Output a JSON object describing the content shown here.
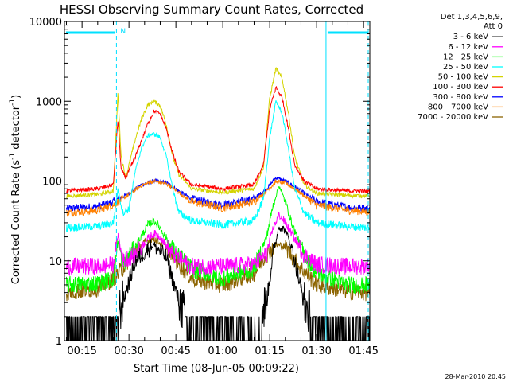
{
  "chart_data": {
    "type": "line",
    "title": "HESSI Observing Summary Count Rates, Corrected",
    "xlabel": "Start Time (08-Jun-05 00:09:22)",
    "ylabel_main": "Corrected Count Rate (s",
    "ylabel_sup1": "-1",
    "ylabel_mid": " detector",
    "ylabel_sup2": "-1",
    "ylabel_end": ")",
    "yscale": "log",
    "ylim": [
      1,
      10000
    ],
    "xlim": [
      9.37,
      107
    ],
    "y_ticks": [
      {
        "v": 1,
        "label": "1"
      },
      {
        "v": 10,
        "label": "10"
      },
      {
        "v": 100,
        "label": "100"
      },
      {
        "v": 1000,
        "label": "1000"
      },
      {
        "v": 10000,
        "label": "10000"
      }
    ],
    "x_ticks": [
      {
        "v": 15,
        "label": "00:15"
      },
      {
        "v": 30,
        "label": "00:30"
      },
      {
        "v": 45,
        "label": "00:45"
      },
      {
        "v": 60,
        "label": "01:00"
      },
      {
        "v": 75,
        "label": "01:15"
      },
      {
        "v": 90,
        "label": "01:30"
      },
      {
        "v": 105,
        "label": "01:45"
      }
    ],
    "legend_header": [
      "Det 1,3,4,5,6,9,",
      "Att 0"
    ],
    "series": [
      {
        "name": "3 - 6 keV",
        "color": "#000000",
        "points": [
          [
            10,
            1.5
          ],
          [
            20,
            1.6
          ],
          [
            25,
            1.5
          ],
          [
            28,
            3
          ],
          [
            32,
            10
          ],
          [
            36,
            14
          ],
          [
            38,
            16
          ],
          [
            42,
            11
          ],
          [
            46,
            3
          ],
          [
            50,
            1.5
          ],
          [
            60,
            1.2
          ],
          [
            70,
            1.3
          ],
          [
            74,
            3
          ],
          [
            76,
            12
          ],
          [
            78,
            27
          ],
          [
            80,
            24
          ],
          [
            82,
            15
          ],
          [
            86,
            3
          ],
          [
            90,
            1.5
          ],
          [
            100,
            1.3
          ],
          [
            107,
            1.2
          ]
        ]
      },
      {
        "name": "6 - 12 keV",
        "color": "#ff00ff",
        "points": [
          [
            10,
            8.5
          ],
          [
            20,
            8.5
          ],
          [
            25,
            9
          ],
          [
            26.5,
            22
          ],
          [
            28,
            10
          ],
          [
            32,
            12
          ],
          [
            36,
            19
          ],
          [
            38,
            22
          ],
          [
            40,
            20
          ],
          [
            44,
            12
          ],
          [
            50,
            8.5
          ],
          [
            60,
            8.5
          ],
          [
            70,
            9
          ],
          [
            74,
            12
          ],
          [
            76,
            25
          ],
          [
            78,
            38
          ],
          [
            80,
            30
          ],
          [
            82,
            22
          ],
          [
            86,
            12
          ],
          [
            90,
            9
          ],
          [
            100,
            8.5
          ],
          [
            107,
            8.5
          ]
        ]
      },
      {
        "name": "12 - 25 keV",
        "color": "#00ff00",
        "points": [
          [
            10,
            5
          ],
          [
            20,
            5.2
          ],
          [
            25,
            6
          ],
          [
            26.5,
            18
          ],
          [
            28,
            9
          ],
          [
            32,
            15
          ],
          [
            36,
            28
          ],
          [
            38,
            32
          ],
          [
            40,
            26
          ],
          [
            44,
            14
          ],
          [
            50,
            8
          ],
          [
            60,
            6
          ],
          [
            70,
            8
          ],
          [
            74,
            20
          ],
          [
            76,
            48
          ],
          [
            78,
            88
          ],
          [
            80,
            55
          ],
          [
            82,
            30
          ],
          [
            86,
            12
          ],
          [
            90,
            7
          ],
          [
            100,
            5
          ],
          [
            107,
            5
          ]
        ]
      },
      {
        "name": "25 - 50 keV",
        "color": "#00ffff",
        "points": [
          [
            10,
            26
          ],
          [
            20,
            27
          ],
          [
            25,
            30
          ],
          [
            26.5,
            80
          ],
          [
            28,
            40
          ],
          [
            30,
            45
          ],
          [
            32,
            130
          ],
          [
            34,
            260
          ],
          [
            36,
            370
          ],
          [
            38,
            390
          ],
          [
            40,
            350
          ],
          [
            42,
            200
          ],
          [
            44,
            80
          ],
          [
            46,
            40
          ],
          [
            50,
            32
          ],
          [
            60,
            28
          ],
          [
            70,
            32
          ],
          [
            73,
            60
          ],
          [
            75,
            350
          ],
          [
            77,
            1000
          ],
          [
            79,
            700
          ],
          [
            81,
            250
          ],
          [
            83,
            80
          ],
          [
            86,
            40
          ],
          [
            90,
            30
          ],
          [
            100,
            27
          ],
          [
            107,
            26
          ]
        ]
      },
      {
        "name": "50 - 100 keV",
        "color": "#d4d400",
        "points": [
          [
            10,
            65
          ],
          [
            20,
            68
          ],
          [
            25,
            75
          ],
          [
            26.5,
            1300
          ],
          [
            27.5,
            200
          ],
          [
            29,
            110
          ],
          [
            32,
            330
          ],
          [
            34,
            600
          ],
          [
            36,
            900
          ],
          [
            38,
            1000
          ],
          [
            40,
            880
          ],
          [
            42,
            500
          ],
          [
            44,
            200
          ],
          [
            46,
            120
          ],
          [
            50,
            80
          ],
          [
            60,
            72
          ],
          [
            70,
            80
          ],
          [
            73,
            150
          ],
          [
            75,
            1100
          ],
          [
            77,
            2600
          ],
          [
            79,
            1900
          ],
          [
            81,
            700
          ],
          [
            83,
            200
          ],
          [
            86,
            90
          ],
          [
            90,
            70
          ],
          [
            100,
            66
          ],
          [
            107,
            65
          ]
        ]
      },
      {
        "name": "100 - 300 keV",
        "color": "#ff0000",
        "points": [
          [
            10,
            75
          ],
          [
            20,
            80
          ],
          [
            25,
            90
          ],
          [
            26.5,
            600
          ],
          [
            27.5,
            140
          ],
          [
            29,
            110
          ],
          [
            32,
            200
          ],
          [
            34,
            320
          ],
          [
            36,
            520
          ],
          [
            38,
            750
          ],
          [
            40,
            700
          ],
          [
            42,
            440
          ],
          [
            44,
            220
          ],
          [
            46,
            130
          ],
          [
            50,
            90
          ],
          [
            60,
            80
          ],
          [
            70,
            90
          ],
          [
            73,
            160
          ],
          [
            75,
            800
          ],
          [
            77,
            1500
          ],
          [
            79,
            1100
          ],
          [
            81,
            450
          ],
          [
            83,
            160
          ],
          [
            86,
            100
          ],
          [
            90,
            80
          ],
          [
            100,
            75
          ],
          [
            107,
            75
          ]
        ]
      },
      {
        "name": "300 - 800 keV",
        "color": "#0000ff",
        "points": [
          [
            10,
            45
          ],
          [
            20,
            48
          ],
          [
            25,
            55
          ],
          [
            30,
            70
          ],
          [
            34,
            90
          ],
          [
            38,
            100
          ],
          [
            42,
            95
          ],
          [
            46,
            75
          ],
          [
            50,
            60
          ],
          [
            60,
            50
          ],
          [
            70,
            60
          ],
          [
            74,
            80
          ],
          [
            77,
            110
          ],
          [
            80,
            100
          ],
          [
            84,
            80
          ],
          [
            90,
            55
          ],
          [
            100,
            47
          ],
          [
            107,
            45
          ]
        ]
      },
      {
        "name": "800 - 7000 keV",
        "color": "#ff8000",
        "points": [
          [
            10,
            40
          ],
          [
            20,
            43
          ],
          [
            25,
            50
          ],
          [
            30,
            68
          ],
          [
            34,
            88
          ],
          [
            38,
            100
          ],
          [
            42,
            92
          ],
          [
            46,
            72
          ],
          [
            50,
            55
          ],
          [
            60,
            46
          ],
          [
            70,
            55
          ],
          [
            74,
            75
          ],
          [
            77,
            98
          ],
          [
            80,
            95
          ],
          [
            84,
            75
          ],
          [
            90,
            50
          ],
          [
            100,
            43
          ],
          [
            107,
            41
          ]
        ]
      },
      {
        "name": "7000 - 20000 keV",
        "color": "#8c6400",
        "points": [
          [
            10,
            4
          ],
          [
            20,
            4.5
          ],
          [
            25,
            6
          ],
          [
            28,
            8
          ],
          [
            32,
            14
          ],
          [
            36,
            18
          ],
          [
            38,
            19
          ],
          [
            42,
            15
          ],
          [
            46,
            9
          ],
          [
            50,
            6
          ],
          [
            60,
            5
          ],
          [
            70,
            7
          ],
          [
            74,
            12
          ],
          [
            77,
            16
          ],
          [
            80,
            15
          ],
          [
            84,
            9
          ],
          [
            90,
            5
          ],
          [
            100,
            4.2
          ],
          [
            107,
            4
          ]
        ]
      }
    ],
    "night_intervals": [
      [
        9.37,
        26
      ],
      [
        93,
        107
      ]
    ],
    "orbit_flag": "N",
    "timestamp": "28-Mar-2010 20:45"
  }
}
